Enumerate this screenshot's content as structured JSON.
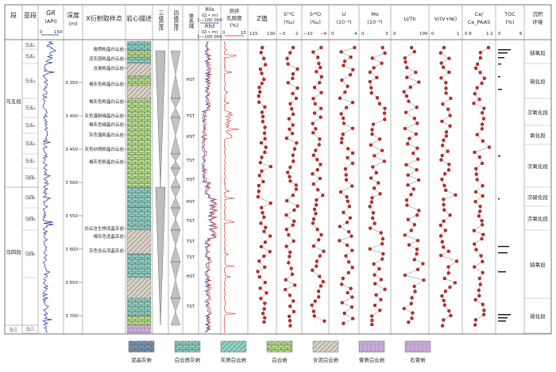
{
  "headers": {
    "duan": "段",
    "yaduan": "亚段",
    "gr_title": "GR",
    "gr_unit": "(API)",
    "gr_scale_min": "0",
    "gr_scale_max": "150",
    "depth_title": "深度",
    "depth_unit": "(m)",
    "xrd_title": "X衍射取样点",
    "core_title": "岩心描述",
    "seq3_title": "三级层序",
    "seq4_title": "四级层序",
    "tract_title": "体系域",
    "rlls_title": "Rlls",
    "rlls_unit": "(Ω • m)",
    "rlls_scale": "1—100 000",
    "rlld_title": "Rlld",
    "rlld_unit": "(Ω • m)",
    "rlld_scale": "1—100 000",
    "poro_title1": "测井",
    "poro_title2": "孔隙度",
    "poro_unit": "(%)",
    "poro_scale_min": "0",
    "poro_scale_max": "15",
    "z_title": "Z值",
    "z_scale_min": "115",
    "z_scale_max": "130",
    "d13c_title": "δ¹³C",
    "d13c_unit": "(‰)",
    "d13c_scale_min": "−3",
    "d13c_scale_max": "2",
    "d18o_title": "δ¹⁸O",
    "d18o_unit": "(‰)",
    "d18o_scale_min": "−10",
    "d18o_scale_max": "−4",
    "u_title": "U",
    "u_unit": "(10⁻⁶)",
    "u_scale_min": "0",
    "u_scale_max": "4",
    "mo_title": "Mo",
    "mo_unit": "(10⁻⁶)",
    "mo_scale_min": "0",
    "mo_scale_max": "3",
    "uth_title": "U/Th",
    "uth_scale_min": "0",
    "uth_scale_max": "100",
    "v_title": "V/(V+Ni)",
    "v_scale_min": "0",
    "v_scale_max": "1",
    "ce_title1": "Ce/",
    "ce_title2": "Ce_PAAS",
    "ce_scale_min": "0.8",
    "ce_scale_max": "1.2",
    "toc_title": "TOC",
    "toc_unit": "(%)",
    "toc_scale_min": "0",
    "toc_scale_max": "6",
    "env_title1": "沉积",
    "env_title2": "环境"
  },
  "formations": {
    "ma5": "马五段",
    "ma4": "马四段",
    "ma3": "马三"
  },
  "submembers": [
    "马五₁",
    "马五₂",
    "马五₃",
    "马五₄",
    "马五₅",
    "马五₆",
    "马五₇",
    "马四₁",
    "马四₂",
    "马四₃",
    "马四₄",
    "马三"
  ],
  "depth_ticks": [
    "3 350",
    "3 400",
    "3 450",
    "3 500",
    "3 550",
    "3 600",
    "3 650",
    "3 700"
  ],
  "core_labels": [
    "膏质粉晶白云岩",
    "泥灰层粉晶白云岩",
    "含膏粉晶白云岩",
    "褐灰色粉晶白云岩",
    "褐灰色粉晶白云岩",
    "灰色藻粉细晶白云岩",
    "褐灰色细晶白云岩",
    "灰色藻粉晶白云岩",
    "灰色砂屑粉晶白云岩",
    "褐灰色粉晶白云岩",
    "白云含生物泥晶灰岩",
    "褐灰色泥晶灰岩",
    "灰色含云泥晶灰岩"
  ],
  "tracts": [
    "HST",
    "TST",
    "HST",
    "TST",
    "HST",
    "HST",
    "TST",
    "TST",
    "TST",
    "HST",
    "TST"
  ],
  "environments": [
    "缺氧段",
    "硫化段",
    "次氧化段",
    "氧化段",
    "次氧化段",
    "次硫化段",
    "次氧化段",
    "缺氧段",
    "硫化段"
  ],
  "legend": [
    "泥晶灰岩",
    "白云质灰岩",
    "灰质白云岩",
    "白云岩",
    "含泥白云岩",
    "膏质白云岩",
    "石膏岩"
  ],
  "colors": {
    "teal": "#8fd0c3",
    "green": "#b8e08c",
    "gray_tan": "#d8d0c4",
    "purple": "#c9a9d8",
    "blue_gray": "#7d9ab4",
    "curve_blue": "#1c2e9a",
    "curve_red": "#d01818",
    "marker": "#c62828"
  }
}
